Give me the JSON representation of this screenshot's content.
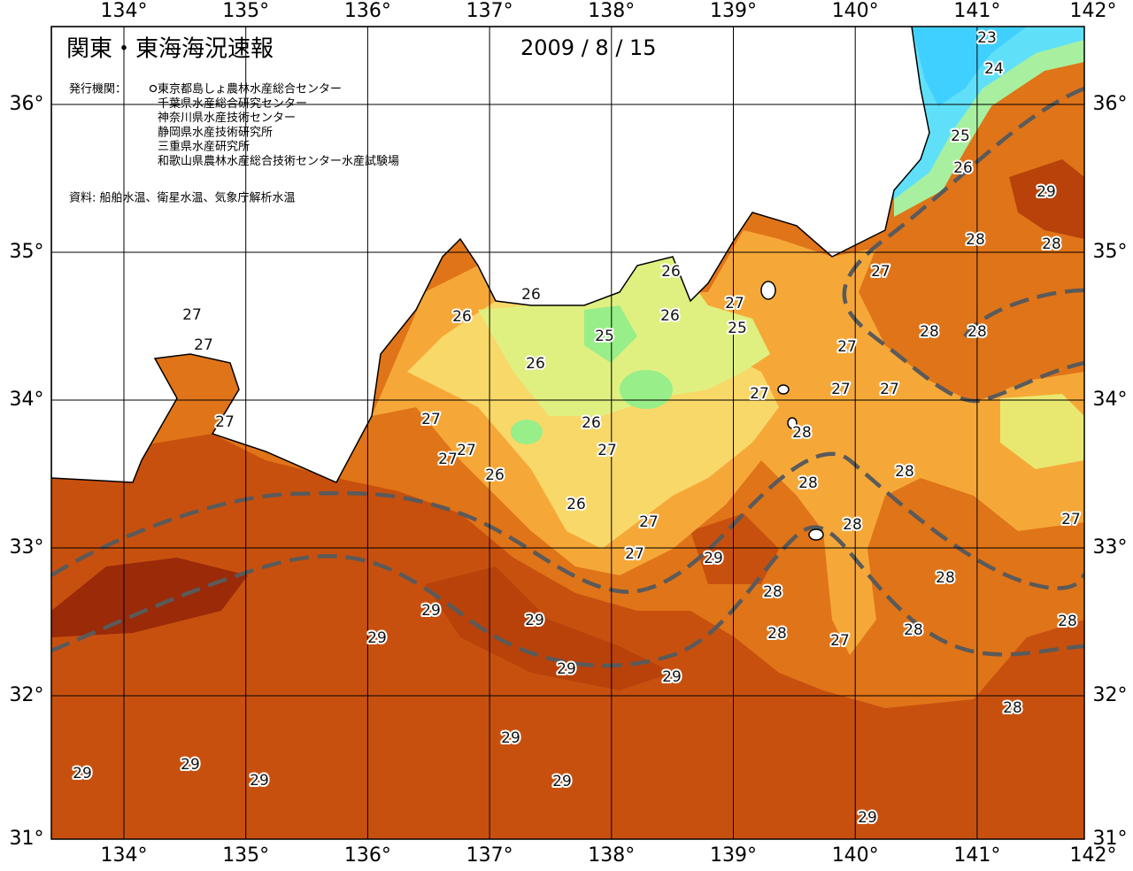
{
  "header": {
    "title": "関東・東海海況速報",
    "date": "2009 / 8 / 15",
    "agency_label": "発行機関：",
    "agencies": [
      "東京都島しょ農林水産総合センター",
      "千葉県水産総合研究センター",
      "神奈川県水産技術センター",
      "静岡県水産技術研究所",
      "三重県水産研究所",
      "和歌山県農林水産総合技術センター水産試験場"
    ],
    "source": "資料: 船舶水温、衛星水温、気象庁解析水温"
  },
  "axes": {
    "longitudes": [
      "134°",
      "135°",
      "136°",
      "137°",
      "138°",
      "139°",
      "140°",
      "141°",
      "142°"
    ],
    "latitudes": [
      "36°",
      "35°",
      "34°",
      "33°",
      "32°",
      "31°"
    ]
  },
  "contour_labels": [
    "23",
    "24",
    "25",
    "26",
    "29",
    "28",
    "28",
    "27",
    "28",
    "28",
    "27",
    "27",
    "27",
    "26",
    "26",
    "26",
    "27",
    "25",
    "25",
    "26",
    "27",
    "27",
    "26",
    "27",
    "28",
    "27",
    "27",
    "26",
    "27",
    "27",
    "27",
    "28",
    "28",
    "26",
    "26",
    "27",
    "28",
    "27",
    "27",
    "29",
    "28",
    "28",
    "29",
    "29",
    "28",
    "28",
    "28",
    "29",
    "27",
    "29",
    "29",
    "28",
    "29",
    "29",
    "29",
    "29",
    "29",
    "29"
  ]
}
